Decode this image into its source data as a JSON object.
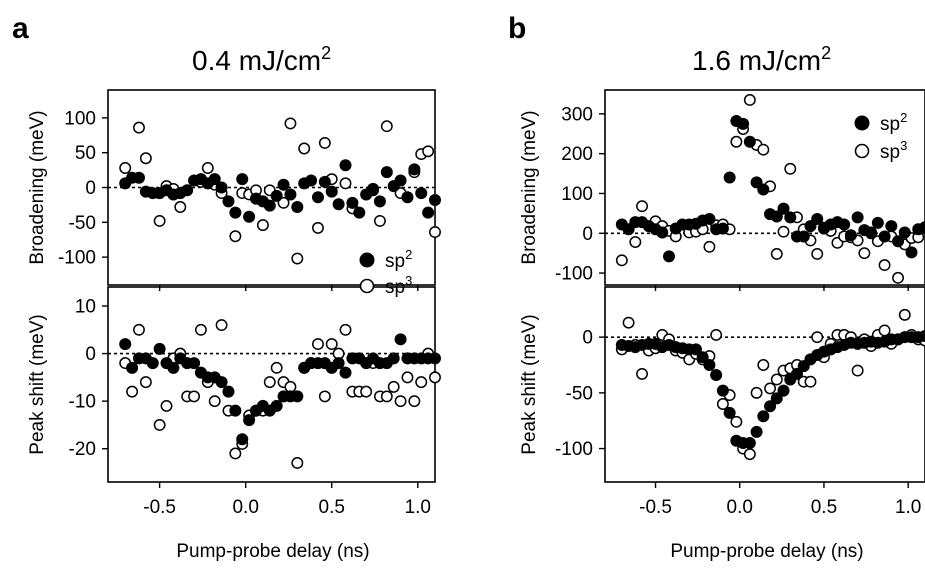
{
  "panels": [
    {
      "letter": "a",
      "title": "0.4 mJ/cm",
      "title_sup": "2",
      "xlabel": "Pump-probe delay (ns)",
      "xticks": [
        -0.5,
        0.0,
        0.5,
        1.0
      ],
      "xtick_labels": [
        "-0.5",
        "0.0",
        "0.5",
        "1.0"
      ]
    },
    {
      "letter": "b",
      "title": "1.6 mJ/cm",
      "title_sup": "2",
      "xlabel": "Pump-probe delay (ns)",
      "xticks": [
        -0.5,
        0.0,
        0.5,
        1.0
      ],
      "xtick_labels": [
        "-0.5",
        "0.0",
        "0.5",
        "1.0"
      ]
    }
  ],
  "legend": [
    {
      "label": "sp",
      "sup": "2",
      "marker": "filled",
      "color": "#000000"
    },
    {
      "label": "sp",
      "sup": "3",
      "marker": "open",
      "color": "#000000"
    }
  ],
  "chart_data": [
    {
      "type": "scatter",
      "panel": "a",
      "subplot": "top",
      "title": "0.4 mJ/cm2",
      "ylabel": "Broadening (meV)",
      "xlim": [
        -0.8,
        1.1
      ],
      "ylim": [
        -140,
        140
      ],
      "yticks": [
        100,
        50,
        0,
        -50,
        -100
      ],
      "ytick_labels": [
        "100",
        "50",
        "0",
        "-50",
        "-100"
      ],
      "zero_line": true,
      "legend_position": "bottom-right",
      "series": [
        {
          "name": "sp2",
          "marker": "filled",
          "x": [
            -0.7,
            -0.66,
            -0.62,
            -0.58,
            -0.54,
            -0.5,
            -0.46,
            -0.42,
            -0.38,
            -0.34,
            -0.3,
            -0.26,
            -0.22,
            -0.18,
            -0.14,
            -0.1,
            -0.06,
            -0.02,
            0.02,
            0.06,
            0.1,
            0.14,
            0.18,
            0.22,
            0.26,
            0.3,
            0.34,
            0.38,
            0.42,
            0.46,
            0.5,
            0.54,
            0.58,
            0.62,
            0.66,
            0.7,
            0.74,
            0.78,
            0.82,
            0.86,
            0.9,
            0.94,
            0.98,
            1.02,
            1.06,
            1.1
          ],
          "y": [
            6,
            14,
            14,
            -6,
            -8,
            -8,
            -4,
            -10,
            -8,
            -4,
            10,
            12,
            6,
            12,
            0,
            -20,
            -36,
            12,
            -42,
            -16,
            -20,
            -26,
            -12,
            4,
            -10,
            -28,
            6,
            10,
            -14,
            8,
            -6,
            -24,
            32,
            -22,
            -36,
            -10,
            -2,
            -20,
            22,
            2,
            10,
            -14,
            26,
            -8,
            -36,
            -18
          ]
        },
        {
          "name": "sp3",
          "marker": "open",
          "x": [
            -0.7,
            -0.62,
            -0.58,
            -0.5,
            -0.46,
            -0.42,
            -0.38,
            -0.26,
            -0.22,
            -0.18,
            -0.14,
            -0.06,
            -0.02,
            0.02,
            0.06,
            0.1,
            0.14,
            0.22,
            0.26,
            0.3,
            0.34,
            0.42,
            0.46,
            0.5,
            0.58,
            0.62,
            0.74,
            0.78,
            0.82,
            0.9,
            0.98,
            1.02,
            1.06,
            1.1
          ],
          "y": [
            28,
            86,
            42,
            -48,
            2,
            -2,
            -28,
            8,
            28,
            4,
            -8,
            -70,
            -8,
            -10,
            -4,
            -54,
            -4,
            -22,
            92,
            -102,
            56,
            -58,
            64,
            12,
            6,
            -30,
            -4,
            -48,
            88,
            -8,
            22,
            48,
            52,
            -64
          ]
        }
      ]
    },
    {
      "type": "scatter",
      "panel": "a",
      "subplot": "bottom",
      "ylabel": "Peak shift (meV)",
      "xlabel": "Pump-probe delay (ns)",
      "xlim": [
        -0.8,
        1.1
      ],
      "ylim": [
        -27,
        14
      ],
      "yticks": [
        10,
        0,
        -10,
        -20
      ],
      "ytick_labels": [
        "10",
        "0",
        "-10",
        "-20"
      ],
      "zero_line": true,
      "series": [
        {
          "name": "sp2",
          "marker": "filled",
          "x": [
            -0.7,
            -0.66,
            -0.62,
            -0.58,
            -0.54,
            -0.5,
            -0.46,
            -0.42,
            -0.38,
            -0.34,
            -0.3,
            -0.26,
            -0.22,
            -0.18,
            -0.14,
            -0.1,
            -0.06,
            -0.02,
            0.02,
            0.06,
            0.1,
            0.14,
            0.18,
            0.22,
            0.26,
            0.3,
            0.34,
            0.38,
            0.42,
            0.46,
            0.5,
            0.54,
            0.58,
            0.62,
            0.66,
            0.7,
            0.74,
            0.78,
            0.82,
            0.86,
            0.9,
            0.94,
            0.98,
            1.02,
            1.06,
            1.1
          ],
          "y": [
            2,
            -3,
            -1,
            -1,
            -2,
            1,
            -2,
            -3,
            -1,
            -2,
            -2,
            -4,
            -5,
            -5,
            -6,
            -8,
            -12,
            -18,
            -14,
            -12,
            -11,
            -12,
            -11,
            -9,
            -9,
            -9,
            -3,
            -2,
            -2,
            -2,
            -3,
            -2,
            -4,
            -1,
            -1,
            -2,
            -1,
            -2,
            -2,
            -1,
            3,
            -1,
            -1,
            -1,
            -1,
            -1
          ]
        },
        {
          "name": "sp3",
          "marker": "open",
          "x": [
            -0.7,
            -0.66,
            -0.62,
            -0.58,
            -0.5,
            -0.46,
            -0.42,
            -0.38,
            -0.34,
            -0.3,
            -0.26,
            -0.22,
            -0.18,
            -0.14,
            -0.1,
            -0.06,
            -0.02,
            0.02,
            0.06,
            0.1,
            0.14,
            0.18,
            0.22,
            0.26,
            0.3,
            0.34,
            0.38,
            0.42,
            0.46,
            0.5,
            0.54,
            0.58,
            0.62,
            0.66,
            0.7,
            0.74,
            0.78,
            0.82,
            0.86,
            0.9,
            0.94,
            0.98,
            1.02,
            1.06,
            1.1
          ],
          "y": [
            -2,
            -8,
            5,
            -6,
            -15,
            -11,
            -1,
            0,
            -9,
            -9,
            5,
            -6,
            -10,
            6,
            -12,
            -21,
            -19,
            -13,
            -12,
            -12,
            -6,
            -3,
            -6,
            -7,
            -23,
            -3,
            -2,
            2,
            -9,
            2,
            0,
            5,
            -8,
            -8,
            -8,
            -2,
            -9,
            -9,
            -7,
            -10,
            -5,
            -10,
            -6,
            0,
            -5
          ]
        }
      ]
    },
    {
      "type": "scatter",
      "panel": "b",
      "subplot": "top",
      "title": "1.6 mJ/cm2",
      "ylabel": "Broadening (meV)",
      "xlim": [
        -0.8,
        1.1
      ],
      "ylim": [
        -130,
        360
      ],
      "yticks": [
        300,
        200,
        100,
        0,
        -100
      ],
      "ytick_labels": [
        "300",
        "200",
        "100",
        "0",
        "-100"
      ],
      "zero_line": true,
      "legend_position": "top-right",
      "series": [
        {
          "name": "sp2",
          "marker": "filled",
          "x": [
            -0.7,
            -0.66,
            -0.62,
            -0.58,
            -0.54,
            -0.5,
            -0.46,
            -0.42,
            -0.38,
            -0.34,
            -0.3,
            -0.26,
            -0.22,
            -0.18,
            -0.14,
            -0.1,
            -0.06,
            -0.02,
            0.02,
            0.06,
            0.1,
            0.14,
            0.18,
            0.22,
            0.26,
            0.3,
            0.34,
            0.38,
            0.42,
            0.46,
            0.5,
            0.54,
            0.58,
            0.62,
            0.66,
            0.7,
            0.74,
            0.78,
            0.82,
            0.86,
            0.9,
            0.94,
            0.98,
            1.02,
            1.06,
            1.1
          ],
          "y": [
            22,
            10,
            28,
            28,
            18,
            10,
            2,
            -58,
            12,
            22,
            22,
            24,
            32,
            36,
            10,
            12,
            140,
            282,
            275,
            230,
            128,
            110,
            48,
            42,
            62,
            40,
            -8,
            -8,
            18,
            36,
            12,
            22,
            28,
            22,
            -5,
            40,
            8,
            0,
            26,
            -8,
            18,
            -20,
            2,
            -48,
            10,
            15
          ]
        },
        {
          "name": "sp3",
          "marker": "open",
          "x": [
            -0.7,
            -0.62,
            -0.58,
            -0.5,
            -0.46,
            -0.42,
            -0.38,
            -0.3,
            -0.26,
            -0.22,
            -0.18,
            -0.14,
            -0.1,
            -0.06,
            -0.02,
            0.02,
            0.06,
            0.1,
            0.14,
            0.18,
            0.22,
            0.26,
            0.3,
            0.34,
            0.38,
            0.42,
            0.46,
            0.5,
            0.54,
            0.58,
            0.62,
            0.66,
            0.7,
            0.74,
            0.78,
            0.82,
            0.86,
            0.9,
            0.94,
            0.98,
            1.02,
            1.06
          ],
          "y": [
            -68,
            -22,
            68,
            30,
            18,
            6,
            -8,
            2,
            4,
            10,
            -34,
            20,
            22,
            10,
            230,
            262,
            335,
            222,
            210,
            118,
            -52,
            4,
            162,
            40,
            10,
            -18,
            -52,
            14,
            6,
            -24,
            -8,
            -10,
            -18,
            -50,
            2,
            -20,
            -80,
            -8,
            -112,
            -28,
            -12,
            -10
          ]
        }
      ]
    },
    {
      "type": "scatter",
      "panel": "b",
      "subplot": "bottom",
      "ylabel": "Peak shift (meV)",
      "xlabel": "Pump-probe delay (ns)",
      "xlim": [
        -0.8,
        1.1
      ],
      "ylim": [
        -130,
        45
      ],
      "yticks": [
        0,
        -50,
        -100
      ],
      "ytick_labels": [
        "0",
        "-50",
        "-100"
      ],
      "zero_line": true,
      "series": [
        {
          "name": "sp2",
          "marker": "filled",
          "x": [
            -0.7,
            -0.66,
            -0.62,
            -0.58,
            -0.54,
            -0.5,
            -0.46,
            -0.42,
            -0.38,
            -0.34,
            -0.3,
            -0.26,
            -0.22,
            -0.18,
            -0.14,
            -0.1,
            -0.06,
            -0.02,
            0.02,
            0.06,
            0.1,
            0.14,
            0.18,
            0.22,
            0.26,
            0.3,
            0.34,
            0.38,
            0.42,
            0.46,
            0.5,
            0.54,
            0.58,
            0.62,
            0.66,
            0.7,
            0.74,
            0.78,
            0.82,
            0.86,
            0.9,
            0.94,
            0.98,
            1.02,
            1.06,
            1.1
          ],
          "y": [
            -7,
            -8,
            -9,
            -7,
            -6,
            -6,
            -9,
            -7,
            -9,
            -10,
            -11,
            -11,
            -18,
            -25,
            -34,
            -48,
            -68,
            -93,
            -95,
            -95,
            -85,
            -71,
            -62,
            -55,
            -48,
            -38,
            -33,
            -26,
            -20,
            -16,
            -13,
            -11,
            -9,
            -7,
            -5,
            -6,
            -5,
            -4,
            -5,
            -4,
            -2,
            -2,
            0,
            0,
            0,
            1
          ]
        },
        {
          "name": "sp3",
          "marker": "open",
          "x": [
            -0.7,
            -0.66,
            -0.62,
            -0.58,
            -0.54,
            -0.5,
            -0.46,
            -0.42,
            -0.38,
            -0.34,
            -0.3,
            -0.26,
            -0.22,
            -0.18,
            -0.14,
            -0.1,
            -0.06,
            -0.02,
            0.02,
            0.06,
            0.1,
            0.14,
            0.18,
            0.22,
            0.26,
            0.3,
            0.34,
            0.38,
            0.42,
            0.46,
            0.5,
            0.54,
            0.58,
            0.62,
            0.66,
            0.7,
            0.74,
            0.78,
            0.82,
            0.86,
            0.9,
            0.94,
            0.98,
            1.02,
            1.06,
            1.1
          ],
          "y": [
            -11,
            13,
            -7,
            -33,
            -12,
            -10,
            2,
            -2,
            -12,
            -14,
            -20,
            -15,
            -20,
            -17,
            2,
            -60,
            -52,
            -76,
            -100,
            -105,
            -50,
            -25,
            -46,
            -38,
            -30,
            -28,
            -25,
            -40,
            -40,
            0,
            -18,
            -6,
            2,
            2,
            0,
            -30,
            -2,
            -8,
            2,
            6,
            -6,
            -2,
            20,
            2,
            -2,
            -3
          ]
        }
      ]
    }
  ]
}
